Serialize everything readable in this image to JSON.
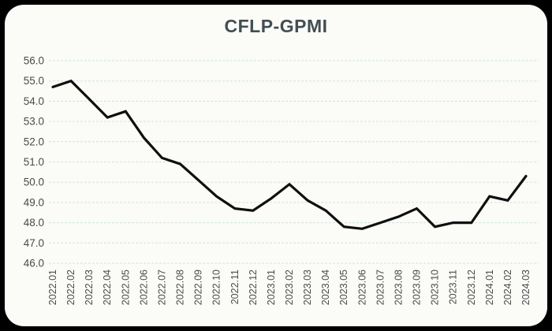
{
  "title": "CFLP-GPMI",
  "chart_data": {
    "type": "line",
    "title": "CFLP-GPMI",
    "xlabel": "",
    "ylabel": "",
    "categories": [
      "2022.01",
      "2022.02",
      "2022.03",
      "2022.04",
      "2022.05",
      "2022.06",
      "2022.07",
      "2022.08",
      "2022.09",
      "2022.10",
      "2022.11",
      "2022.12",
      "2023.01",
      "2023.02",
      "2023.03",
      "2023.04",
      "2023.05",
      "2023.06",
      "2023.07",
      "2023.08",
      "2023.09",
      "2023.10",
      "2023.11",
      "2023.12",
      "2024.01",
      "2024.02",
      "2024.03"
    ],
    "series": [
      {
        "name": "CFLP-GPMI",
        "values": [
          54.7,
          55.0,
          54.1,
          53.2,
          53.5,
          52.2,
          51.2,
          50.9,
          50.1,
          49.3,
          48.7,
          48.6,
          49.2,
          49.9,
          49.1,
          48.6,
          47.8,
          47.7,
          48.0,
          48.3,
          48.7,
          47.8,
          48.0,
          48.0,
          49.3,
          49.1,
          50.3
        ]
      }
    ],
    "ylim": [
      46.0,
      56.0
    ],
    "ytick_step": 1.0,
    "ytick_labels": [
      "56.0",
      "55.0",
      "54.0",
      "53.0",
      "52.0",
      "51.0",
      "50.0",
      "49.0",
      "48.0",
      "47.0",
      "46.0"
    ],
    "grid": "horizontal-dashed",
    "legend": "none",
    "colors": {
      "line": "#0f0f0f",
      "grid": "#d2e4e0",
      "tick_label": "#4a4a4a",
      "title": "#424e52",
      "card_background": "#fbfbf8",
      "frame_background": "#000000"
    }
  }
}
